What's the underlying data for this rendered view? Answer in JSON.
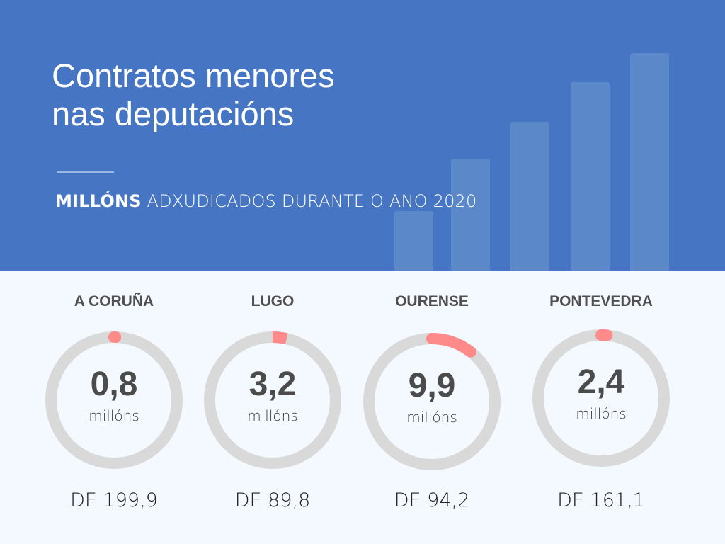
{
  "header": {
    "title_line1": "Contratos menores",
    "title_line2": "nas deputacións",
    "subtitle_bold": "MILLÓNS",
    "subtitle_rest": " ADXUDICADOS DURANTE O ANO 2020"
  },
  "colors": {
    "header_bg": "#4575c3",
    "track": "#d9d9d9",
    "arc": "#ff8a8a",
    "bg": "#f4f9ff"
  },
  "chart_data": {
    "type": "pie",
    "title": "Contratos menores nas deputacións",
    "subtitle": "MILLÓNS ADXUDICADOS DURANTE O ANO 2020",
    "unit_label": "millóns",
    "items": [
      {
        "name": "A CORUÑA",
        "value": 0.8,
        "value_label": "0,8",
        "total": 199.9,
        "total_label": "DE 199,9"
      },
      {
        "name": "LUGO",
        "value": 3.2,
        "value_label": "3,2",
        "total": 89.8,
        "total_label": "DE 89,8"
      },
      {
        "name": "OURENSE",
        "value": 9.9,
        "value_label": "9,9",
        "total": 94.2,
        "total_label": "DE 94,2"
      },
      {
        "name": "PONTEVEDRA",
        "value": 2.4,
        "value_label": "2,4",
        "total": 161.1,
        "total_label": "DE 161,1"
      }
    ]
  }
}
